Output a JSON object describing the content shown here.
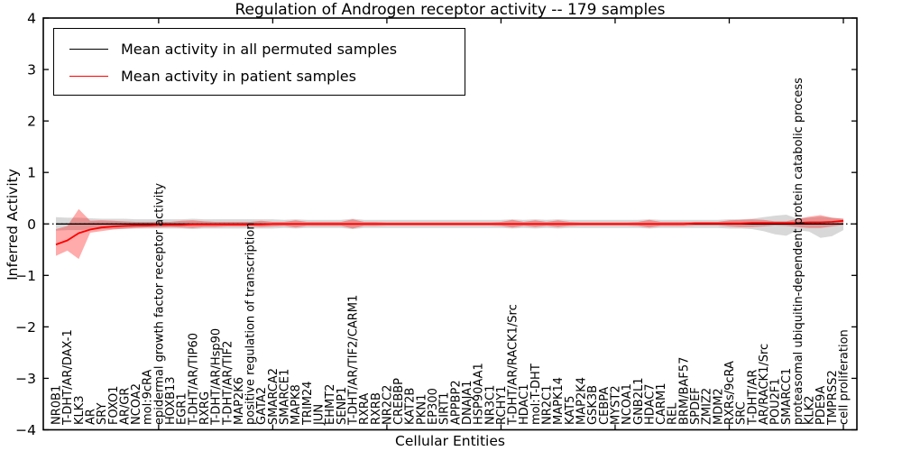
{
  "chart_data": {
    "type": "line",
    "title": "Regulation of Androgen receptor activity -- 179 samples",
    "xlabel": "Cellular Entities",
    "ylabel": "Inferred Activity",
    "ylim": [
      -4,
      4
    ],
    "yticks": [
      4,
      3,
      2,
      1,
      0,
      -1,
      -2,
      -3,
      -4
    ],
    "ytick_labels": [
      "4",
      "3",
      "2",
      "1",
      "0",
      "−1",
      "−2",
      "−3",
      "−4"
    ],
    "grid": false,
    "legend_position": "upper left",
    "x_major_tick_every": 10,
    "categories": [
      "NR0B1",
      "T-DHT/AR/DAX-1",
      "KLK3",
      "AR",
      "SRY",
      "FOXO1",
      "AR/GR",
      "NCOA2",
      "mol:9cRA",
      "epidermal growth factor receptor activity",
      "HOXB13",
      "EGR1",
      "T-DHT/AR/TIP60",
      "RXRG",
      "T-DHT/AR/Hsp90",
      "T-DHT/AR/TIF2",
      "MAP2K6",
      "positive regulation of transcription",
      "GATA2",
      "SMARCA2",
      "SMARCE1",
      "MAPK8",
      "TRIM24",
      "JUN",
      "EHMT2",
      "SENP1",
      "T-DHT/AR/TIF2/CARM1",
      "RXRA",
      "RXRB",
      "NR2C2",
      "CREBBP",
      "KAT2B",
      "PKN1",
      "EP300",
      "SIRT1",
      "APPBP2",
      "DNAJA1",
      "HSP90AA1",
      "NR3C1",
      "RCHY1",
      "T-DHT/AR/RACK1/Src",
      "HDAC1",
      "mol:T-DHT",
      "NR2C1",
      "MAPK14",
      "KAT5",
      "MAP2K4",
      "GSK3B",
      "CEBPA",
      "MYST2",
      "NCOA1",
      "GNB2L1",
      "HDAC7",
      "CARM1",
      "REL",
      "BRM/BAF57",
      "SPDEF",
      "ZMIZ2",
      "MDM2",
      "RXRs/9cRA",
      "SRC",
      "T-DHT/AR",
      "AR/RACK1/Src",
      "POU2F1",
      "SMARCC1",
      "proteasomal ubiquitin-dependent protein catabolic process",
      "KLK2",
      "PDE9A",
      "TMPRSS2",
      "cell proliferation"
    ],
    "series": [
      {
        "name": "Mean activity in all permuted samples",
        "color": "#000000",
        "band_color": "#999999",
        "band_opacity": 0.38,
        "values": [
          0,
          0,
          0,
          0,
          0,
          0,
          0,
          0,
          0,
          0,
          0,
          0,
          0,
          0,
          0,
          0,
          0,
          0,
          0,
          0,
          0,
          0,
          0,
          0,
          0,
          0,
          0,
          0,
          0,
          0,
          0,
          0,
          0,
          0,
          0,
          0,
          0,
          0,
          0,
          0,
          0,
          0,
          0,
          0,
          0,
          0,
          0,
          0,
          0,
          0,
          0,
          0,
          0,
          0,
          0,
          0,
          0,
          0,
          0,
          0,
          0,
          0,
          0,
          0,
          0,
          0,
          0,
          0,
          0,
          0
        ],
        "band_upper": [
          0.13,
          0.12,
          0.12,
          0.11,
          0.1,
          0.1,
          0.1,
          0.09,
          0.09,
          0.09,
          0.09,
          0.09,
          0.1,
          0.09,
          0.09,
          0.09,
          0.09,
          0.09,
          0.09,
          0.09,
          0.08,
          0.09,
          0.08,
          0.08,
          0.08,
          0.08,
          0.1,
          0.08,
          0.08,
          0.08,
          0.08,
          0.08,
          0.08,
          0.08,
          0.08,
          0.08,
          0.08,
          0.08,
          0.08,
          0.08,
          0.09,
          0.08,
          0.09,
          0.08,
          0.09,
          0.08,
          0.08,
          0.08,
          0.08,
          0.08,
          0.08,
          0.08,
          0.09,
          0.08,
          0.08,
          0.08,
          0.08,
          0.08,
          0.08,
          0.09,
          0.09,
          0.1,
          0.13,
          0.16,
          0.18,
          0.1,
          0.12,
          0.14,
          0.12,
          0.1
        ],
        "band_lower": [
          -0.13,
          -0.12,
          -0.12,
          -0.11,
          -0.1,
          -0.1,
          -0.1,
          -0.09,
          -0.09,
          -0.09,
          -0.09,
          -0.09,
          -0.1,
          -0.09,
          -0.09,
          -0.09,
          -0.09,
          -0.09,
          -0.09,
          -0.09,
          -0.08,
          -0.09,
          -0.08,
          -0.08,
          -0.08,
          -0.08,
          -0.1,
          -0.08,
          -0.08,
          -0.08,
          -0.08,
          -0.08,
          -0.08,
          -0.08,
          -0.08,
          -0.08,
          -0.08,
          -0.08,
          -0.08,
          -0.08,
          -0.09,
          -0.08,
          -0.09,
          -0.08,
          -0.09,
          -0.08,
          -0.08,
          -0.08,
          -0.08,
          -0.08,
          -0.08,
          -0.08,
          -0.09,
          -0.08,
          -0.08,
          -0.08,
          -0.08,
          -0.08,
          -0.08,
          -0.09,
          -0.09,
          -0.1,
          -0.14,
          -0.2,
          -0.23,
          -0.12,
          -0.15,
          -0.27,
          -0.24,
          -0.12
        ]
      },
      {
        "name": "Mean activity in patient samples",
        "color": "#ff0000",
        "band_color": "#ff0000",
        "band_opacity": 0.33,
        "values": [
          -0.4,
          -0.32,
          -0.18,
          -0.11,
          -0.07,
          -0.05,
          -0.04,
          -0.03,
          -0.03,
          -0.02,
          -0.02,
          -0.02,
          -0.01,
          -0.01,
          -0.01,
          -0.01,
          -0.01,
          -0.01,
          -0.01,
          0,
          0,
          0,
          0,
          0,
          0,
          0,
          0,
          0,
          0,
          0,
          0,
          0,
          0,
          0,
          0,
          0,
          0,
          0,
          0,
          0,
          0,
          0,
          0,
          0,
          0,
          0,
          0,
          0,
          0,
          0,
          0,
          0,
          0,
          0,
          0,
          0,
          0.01,
          0.01,
          0.01,
          0.01,
          0.01,
          0.02,
          0.02,
          0.02,
          0.02,
          0.02,
          0.03,
          0.03,
          0.04,
          0.06
        ],
        "band_upper": [
          -0.1,
          -0.04,
          0.29,
          0.06,
          0.07,
          0.06,
          0.05,
          0.04,
          0.04,
          0.04,
          0.04,
          0.06,
          0.07,
          0.05,
          0.04,
          0.04,
          0.04,
          0.04,
          0.06,
          0.04,
          0.04,
          0.07,
          0.04,
          0.04,
          0.04,
          0.04,
          0.09,
          0.04,
          0.04,
          0.03,
          0.03,
          0.03,
          0.03,
          0.03,
          0.03,
          0.03,
          0.03,
          0.03,
          0.03,
          0.04,
          0.08,
          0.04,
          0.07,
          0.04,
          0.07,
          0.04,
          0.03,
          0.03,
          0.03,
          0.03,
          0.03,
          0.04,
          0.08,
          0.04,
          0.04,
          0.04,
          0.04,
          0.04,
          0.04,
          0.07,
          0.08,
          0.09,
          0.08,
          0.05,
          0.05,
          0.1,
          0.14,
          0.17,
          0.12,
          0.1
        ],
        "band_lower": [
          -0.62,
          -0.52,
          -0.68,
          -0.17,
          -0.14,
          -0.11,
          -0.09,
          -0.08,
          -0.07,
          -0.07,
          -0.06,
          -0.07,
          -0.08,
          -0.06,
          -0.06,
          -0.05,
          -0.05,
          -0.05,
          -0.06,
          -0.05,
          -0.04,
          -0.07,
          -0.04,
          -0.04,
          -0.04,
          -0.04,
          -0.09,
          -0.04,
          -0.04,
          -0.03,
          -0.03,
          -0.03,
          -0.03,
          -0.03,
          -0.03,
          -0.03,
          -0.03,
          -0.03,
          -0.03,
          -0.04,
          -0.07,
          -0.04,
          -0.06,
          -0.04,
          -0.06,
          -0.04,
          -0.03,
          -0.03,
          -0.03,
          -0.03,
          -0.03,
          -0.04,
          -0.07,
          -0.04,
          -0.04,
          -0.04,
          -0.03,
          -0.03,
          -0.03,
          -0.05,
          -0.06,
          -0.06,
          -0.05,
          -0.03,
          -0.04,
          -0.06,
          -0.08,
          -0.08,
          -0.05,
          -0.02
        ]
      }
    ],
    "zero_line": {
      "style": "dotted",
      "color": "#000000",
      "y": 0
    }
  }
}
